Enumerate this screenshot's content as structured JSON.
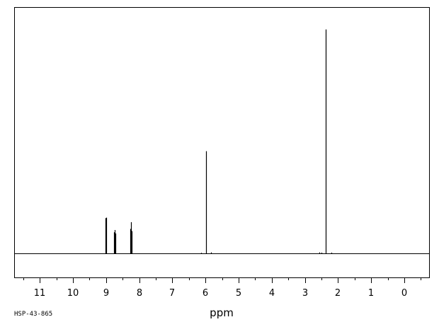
{
  "chart_data": {
    "type": "line",
    "title": "",
    "xlabel": "ppm",
    "ylabel": "",
    "spectrum_id": "HSP-43-865",
    "xlim": [
      11.75,
      -0.75
    ],
    "x_reversed": true,
    "ylim": [
      -0.11,
      1.0
    ],
    "grid": false,
    "major_ticks": [
      11,
      10,
      9,
      8,
      7,
      6,
      5,
      4,
      3,
      2,
      1,
      0
    ],
    "tick_labels": [
      "11",
      "10",
      "9",
      "8",
      "7",
      "6",
      "5",
      "4",
      "3",
      "2",
      "1",
      "0"
    ],
    "minor_ticks": [
      11.5,
      10.5,
      9.5,
      8.5,
      7.5,
      6.5,
      5.5,
      4.5,
      3.5,
      2.5,
      1.5,
      0.5,
      -0.5
    ],
    "series": [
      {
        "peaks": [
          {
            "ppm": 9.02,
            "height": 0.158
          },
          {
            "ppm": 8.996,
            "height": 0.16
          },
          {
            "ppm": 8.75,
            "height": 0.095
          },
          {
            "ppm": 8.728,
            "height": 0.105
          },
          {
            "ppm": 8.706,
            "height": 0.09
          },
          {
            "ppm": 8.265,
            "height": 0.11
          },
          {
            "ppm": 8.243,
            "height": 0.14
          },
          {
            "ppm": 8.221,
            "height": 0.1
          },
          {
            "ppm": 5.985,
            "height": 0.455
          },
          {
            "ppm": 5.835,
            "height": 0.006
          },
          {
            "ppm": 6.13,
            "height": 0.004
          },
          {
            "ppm": 2.375,
            "height": 0.995
          },
          {
            "ppm": 2.56,
            "height": 0.006
          },
          {
            "ppm": 2.5,
            "height": 0.005
          },
          {
            "ppm": 2.2,
            "height": 0.005
          }
        ]
      }
    ]
  }
}
